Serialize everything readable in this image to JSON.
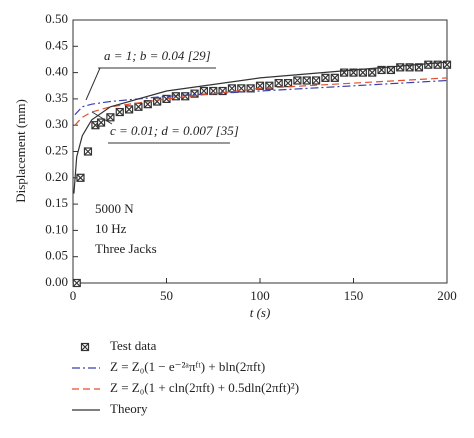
{
  "chart_data": {
    "type": "line",
    "xlabel": "t (s)",
    "ylabel": "Displacement (mm)",
    "xlim": [
      0,
      200
    ],
    "xticks": [
      0,
      50,
      100,
      150,
      200
    ],
    "ylim": [
      0,
      0.5
    ],
    "yticks": [
      {
        "value": 0,
        "label": "0.00"
      },
      0.05,
      {
        "value": 0.1,
        "label": "0.10"
      },
      0.15,
      {
        "value": 0.2,
        "label": "0.20"
      },
      0.25,
      {
        "value": 0.3,
        "label": "0.30"
      },
      0.35,
      {
        "value": 0.4,
        "label": "0.40"
      },
      0.45,
      {
        "value": 0.5,
        "label": "0.50"
      }
    ],
    "annotations": [
      "a = 1; b = 0.04 [29]",
      "c = 0.01; d = 0.007 [35]",
      "5000 N",
      "10 Hz",
      "Three Jacks"
    ],
    "series": [
      {
        "name": "Test data",
        "style": "markers",
        "color": "#333333",
        "x": [
          2,
          4,
          8,
          12,
          15,
          20,
          25,
          30,
          35,
          40,
          45,
          50,
          55,
          60,
          65,
          70,
          75,
          80,
          85,
          90,
          95,
          100,
          105,
          110,
          115,
          120,
          125,
          130,
          135,
          140,
          145,
          150,
          155,
          160,
          165,
          170,
          175,
          180,
          185,
          190,
          195,
          200
        ],
        "values": [
          0.0,
          0.2,
          0.25,
          0.3,
          0.305,
          0.315,
          0.325,
          0.33,
          0.335,
          0.34,
          0.345,
          0.35,
          0.355,
          0.355,
          0.36,
          0.365,
          0.365,
          0.365,
          0.37,
          0.37,
          0.37,
          0.375,
          0.375,
          0.38,
          0.38,
          0.385,
          0.385,
          0.385,
          0.39,
          0.39,
          0.4,
          0.4,
          0.4,
          0.4,
          0.405,
          0.405,
          0.41,
          0.41,
          0.41,
          0.415,
          0.415,
          0.415
        ]
      },
      {
        "name": "Z = Z₀(1 − e⁻²ᵃπᶠᵗ) + bln(2πft)",
        "style": "dashdot",
        "color": "#3a3fb0",
        "x": [
          1,
          5,
          10,
          20,
          50,
          100,
          150,
          200
        ],
        "values": [
          0.32,
          0.335,
          0.34,
          0.345,
          0.355,
          0.365,
          0.375,
          0.385
        ]
      },
      {
        "name": "Z = Z₀(1 + cln(2πft) + 0.5dln(2πft)²)",
        "style": "dashed",
        "color": "#e0502a",
        "x": [
          1,
          5,
          10,
          20,
          50,
          100,
          150,
          200
        ],
        "values": [
          0.3,
          0.315,
          0.325,
          0.335,
          0.35,
          0.37,
          0.38,
          0.39
        ]
      },
      {
        "name": "Theory",
        "style": "solid",
        "color": "#333333",
        "x": [
          0.5,
          2,
          5,
          10,
          20,
          50,
          100,
          150,
          200
        ],
        "values": [
          0.17,
          0.24,
          0.28,
          0.31,
          0.335,
          0.365,
          0.39,
          0.405,
          0.42
        ]
      }
    ]
  }
}
